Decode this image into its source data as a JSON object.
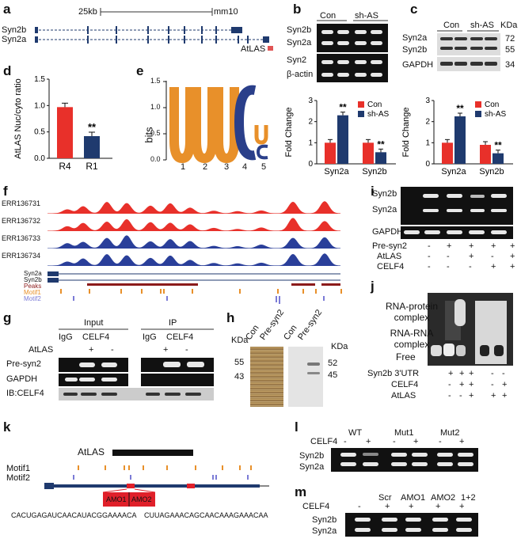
{
  "a": {
    "label": "a",
    "scale_text": "25kb",
    "genome": "mm10",
    "genes": [
      "Syn2b",
      "Syn2a"
    ],
    "lnc": "AtLAS"
  },
  "b": {
    "label": "b",
    "cols": [
      "Con",
      "sh-AS"
    ],
    "rows": [
      "Syn2b",
      "Syn2a",
      "Syn2",
      "β-actin"
    ]
  },
  "c": {
    "label": "c",
    "cols": [
      "Con",
      "sh-AS"
    ],
    "unit": "KDa",
    "rows": [
      "Syn2a",
      "Syn2b",
      "GAPDH"
    ],
    "kda": [
      "72",
      "55",
      "34"
    ]
  },
  "d": {
    "label": "d",
    "chart_data": {
      "type": "bar",
      "ylabel": "AtLAS Nuc/cyto ratio",
      "categories": [
        "R4",
        "R1"
      ],
      "values": [
        0.97,
        0.42
      ],
      "ylim": [
        0,
        1.5
      ],
      "ticks": [
        "0.0",
        "0.5",
        "1.0",
        "1.5"
      ],
      "colors": [
        "#e8302a",
        "#1f3a6e"
      ],
      "annotations": [
        "",
        "**"
      ]
    }
  },
  "e": {
    "label": "e",
    "ylabel": "bits",
    "ticks": [
      "0.0",
      "0.5",
      "1.0",
      "1.5"
    ],
    "positions": [
      "1",
      "2",
      "3",
      "4",
      "5"
    ]
  },
  "b_chart": {
    "chart_data": {
      "type": "bar",
      "ylabel": "Fold Change",
      "categories": [
        "Syn2a",
        "Syn2b"
      ],
      "series": [
        {
          "name": "Con",
          "values": [
            1.0,
            1.0
          ]
        },
        {
          "name": "sh-AS",
          "values": [
            2.3,
            0.55
          ]
        }
      ],
      "ylim": [
        0,
        3
      ],
      "ticks": [
        "0",
        "1",
        "2",
        "3"
      ],
      "annotations": [
        "**",
        "**"
      ]
    }
  },
  "c_chart": {
    "chart_data": {
      "type": "bar",
      "ylabel": "Fold Change",
      "categories": [
        "Syn2a",
        "Syn2b"
      ],
      "series": [
        {
          "name": "Con",
          "values": [
            1.0,
            0.9
          ]
        },
        {
          "name": "sh-AS",
          "values": [
            2.25,
            0.5
          ]
        }
      ],
      "ylim": [
        0,
        3
      ],
      "ticks": [
        "0",
        "1",
        "2",
        "3"
      ],
      "annotations": [
        "**",
        "**"
      ]
    }
  },
  "f": {
    "label": "f",
    "tracks": [
      "ERR136731",
      "ERR136732",
      "ERR136733",
      "ERR136734"
    ],
    "features": [
      "Syn2a",
      "Syn2b",
      "Peaks",
      "Motif1",
      "Motif2"
    ]
  },
  "g": {
    "label": "g",
    "input": "Input",
    "ip": "IP",
    "cols": [
      "IgG",
      "CELF4",
      "IgG",
      "CELF4"
    ],
    "atlas": "AtLAS",
    "atlas_marks": [
      "+",
      "-",
      "+",
      "-"
    ],
    "rows": [
      "Pre-syn2",
      "GAPDH",
      "IB:CELF4"
    ]
  },
  "h": {
    "label": "h",
    "unit": "KDa",
    "cols": [
      "Con",
      "Pre-syn2",
      "Con",
      "Pre-syn2"
    ],
    "left_kda": [
      "55",
      "43"
    ],
    "right_kda": [
      "52",
      "45"
    ]
  },
  "i": {
    "label": "i",
    "rows": [
      "Syn2b",
      "Syn2a",
      "GAPDH"
    ],
    "conds": [
      "Pre-syn2",
      "AtLAS",
      "CELF4"
    ],
    "marks": [
      [
        "-",
        "+",
        "+",
        "+",
        "+"
      ],
      [
        "-",
        "-",
        "+",
        "-",
        "+"
      ],
      [
        "-",
        "-",
        "-",
        "+",
        "+"
      ]
    ]
  },
  "j": {
    "label": "j",
    "labels": [
      "RNA-protein complex",
      "RNA-RNA complex",
      "Free"
    ],
    "conds": [
      "Syn2b 3'UTR",
      "CELF4",
      "AtLAS"
    ],
    "marks": [
      [
        "+",
        "+",
        "+",
        "-",
        "-"
      ],
      [
        "-",
        "+",
        "+",
        "-",
        "+"
      ],
      [
        "-",
        "-",
        "+",
        "+",
        "+"
      ]
    ]
  },
  "k": {
    "label": "k",
    "lnc": "AtLAS",
    "motifs": [
      "Motif1",
      "Motif2"
    ],
    "amos": [
      "AMO1",
      "AMO2"
    ],
    "seq1": "CACUGAGAUCAACAUACGGAAAACA",
    "seq2": "CUUAGAAACAGCAACAAAGAAACAA"
  },
  "l": {
    "label": "l",
    "celf4": "CELF4",
    "groups": [
      "WT",
      "Mut1",
      "Mut2"
    ],
    "marks": [
      "-",
      "+",
      "-",
      "+",
      "-",
      "+"
    ],
    "rows": [
      "Syn2b",
      "Syn2a"
    ]
  },
  "m": {
    "label": "m",
    "celf4": "CELF4",
    "groups": [
      "Scr",
      "AMO1",
      "AMO2",
      "1+2"
    ],
    "marks": [
      "-",
      "+",
      "+",
      "+",
      "+"
    ],
    "rows": [
      "Syn2b",
      "Syn2a"
    ]
  }
}
